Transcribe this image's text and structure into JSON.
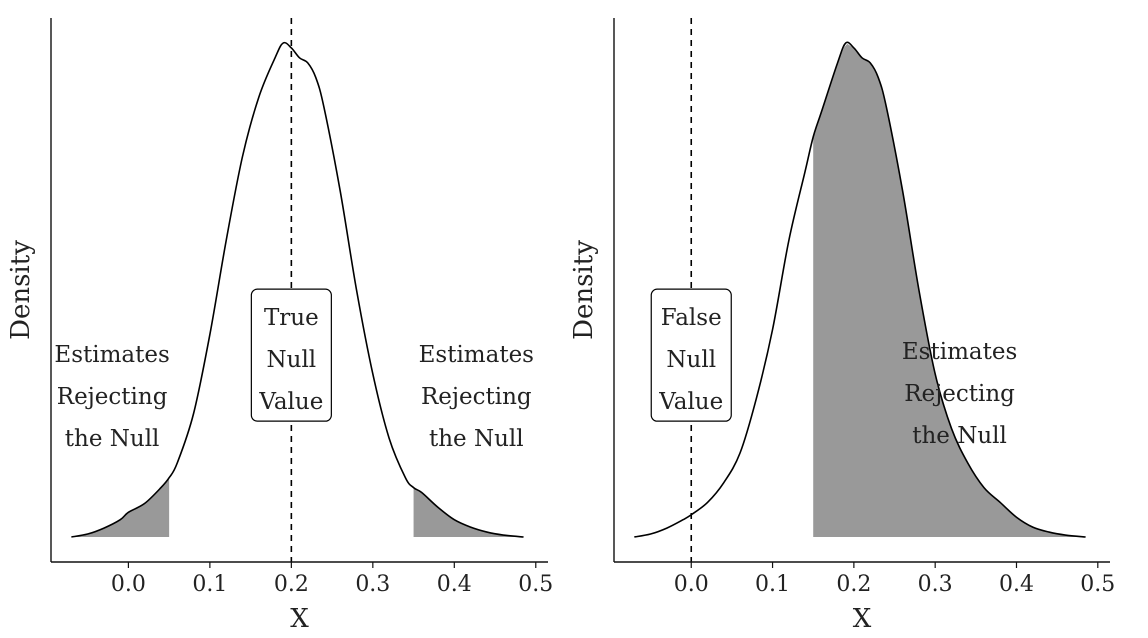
{
  "chart_data": [
    {
      "type": "area",
      "xlabel": "X",
      "ylabel": "Density",
      "xlim": [
        -0.095,
        0.515
      ],
      "ylim": [
        0,
        1.1
      ],
      "x_ticks": [
        0.0,
        0.1,
        0.2,
        0.3,
        0.4,
        0.5
      ],
      "x_tick_labels": [
        "0.0",
        "0.1",
        "0.2",
        "0.3",
        "0.4",
        "0.5"
      ],
      "grid": false,
      "density_curve": {
        "x": [
          -0.07,
          -0.05,
          -0.03,
          -0.01,
          0.0,
          0.02,
          0.04,
          0.05,
          0.06,
          0.08,
          0.1,
          0.12,
          0.14,
          0.16,
          0.18,
          0.19,
          0.2,
          0.21,
          0.22,
          0.23,
          0.24,
          0.26,
          0.28,
          0.3,
          0.32,
          0.34,
          0.35,
          0.36,
          0.38,
          0.4,
          0.42,
          0.44,
          0.46,
          0.485
        ],
        "y": [
          0.0,
          0.006,
          0.018,
          0.035,
          0.05,
          0.068,
          0.1,
          0.12,
          0.15,
          0.25,
          0.41,
          0.6,
          0.77,
          0.89,
          0.97,
          1.0,
          0.99,
          0.97,
          0.96,
          0.93,
          0.87,
          0.7,
          0.5,
          0.33,
          0.2,
          0.12,
          0.1,
          0.09,
          0.06,
          0.035,
          0.02,
          0.01,
          0.004,
          0.0
        ]
      },
      "reference_line": {
        "x": 0.2,
        "style": "dashed"
      },
      "shaded_regions": [
        [
          -0.07,
          0.05
        ],
        [
          0.35,
          0.485
        ]
      ],
      "annotations": [
        {
          "lines": [
            "Estimates",
            "Rejecting",
            "the Null"
          ],
          "x": -0.02,
          "y": 0.285
        },
        {
          "lines": [
            "True",
            "Null",
            "Value"
          ],
          "x": 0.2,
          "y": 0.36,
          "boxed": true
        },
        {
          "lines": [
            "Estimates",
            "Rejecting",
            "the Null"
          ],
          "x": 0.427,
          "y": 0.285
        }
      ]
    },
    {
      "type": "area",
      "xlabel": "X",
      "ylabel": "Density",
      "xlim": [
        -0.095,
        0.515
      ],
      "ylim": [
        0,
        1.1
      ],
      "x_ticks": [
        0.0,
        0.1,
        0.2,
        0.3,
        0.4,
        0.5
      ],
      "x_tick_labels": [
        "0.0",
        "0.1",
        "0.2",
        "0.3",
        "0.4",
        "0.5"
      ],
      "grid": false,
      "density_curve": {
        "x": [
          -0.07,
          -0.05,
          -0.03,
          -0.01,
          0.0,
          0.02,
          0.04,
          0.06,
          0.08,
          0.1,
          0.12,
          0.14,
          0.15,
          0.16,
          0.18,
          0.19,
          0.2,
          0.21,
          0.22,
          0.23,
          0.24,
          0.26,
          0.28,
          0.3,
          0.32,
          0.34,
          0.36,
          0.38,
          0.4,
          0.42,
          0.44,
          0.46,
          0.485
        ],
        "y": [
          0.0,
          0.006,
          0.018,
          0.035,
          0.045,
          0.07,
          0.11,
          0.17,
          0.28,
          0.42,
          0.6,
          0.74,
          0.81,
          0.86,
          0.96,
          1.0,
          0.99,
          0.97,
          0.96,
          0.93,
          0.87,
          0.7,
          0.5,
          0.33,
          0.22,
          0.15,
          0.1,
          0.07,
          0.04,
          0.02,
          0.01,
          0.004,
          0.0
        ]
      },
      "reference_line": {
        "x": 0.0,
        "style": "dashed"
      },
      "shaded_regions": [
        [
          0.15,
          0.485
        ]
      ],
      "annotations": [
        {
          "lines": [
            "False",
            "Null",
            "Value"
          ],
          "x": 0.0,
          "y": 0.36,
          "boxed": true
        },
        {
          "lines": [
            "Estimates",
            "Rejecting",
            "the Null"
          ],
          "x": 0.33,
          "y": 0.292
        }
      ]
    }
  ]
}
